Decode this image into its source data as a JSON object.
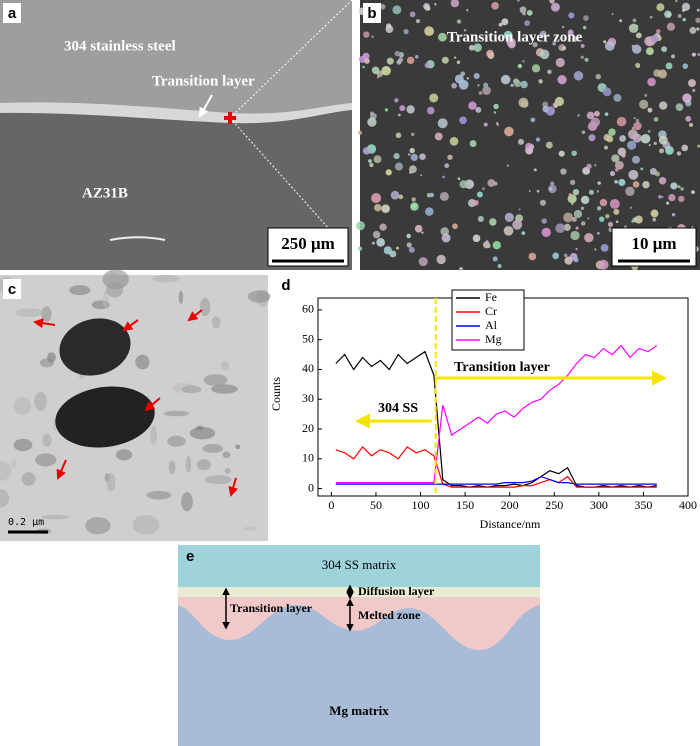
{
  "panel_a": {
    "label": "a",
    "steel": "304 stainless steel",
    "layer": "Transition layer",
    "alloy": "AZ31B",
    "scale": "250 μm"
  },
  "panel_b": {
    "label": "b",
    "title": "Transition layer zone",
    "scale": "10 μm"
  },
  "panel_c": {
    "label": "c",
    "scale": "0.2 μm"
  },
  "panel_e": {
    "label": "e",
    "top": "304 SS matrix",
    "diffusion": "Diffusion layer",
    "transition": "Transition layer",
    "melted": "Melted zone",
    "bottom": "Mg matrix"
  },
  "chart_data": {
    "type": "line",
    "label": "d",
    "x_label": "Distance/nm",
    "y_label": "Counts",
    "x": [
      5,
      15,
      25,
      35,
      45,
      55,
      65,
      75,
      85,
      95,
      105,
      115,
      125,
      135,
      145,
      155,
      165,
      175,
      185,
      195,
      205,
      215,
      225,
      235,
      245,
      255,
      265,
      275,
      285,
      295,
      305,
      315,
      325,
      335,
      345,
      355,
      365
    ],
    "series": [
      {
        "name": "Fe",
        "color": "#000000",
        "values": [
          42,
          45,
          40,
          44,
          41,
          43,
          40,
          45,
          42,
          44,
          46,
          38,
          3,
          1,
          1,
          0.5,
          1,
          0.5,
          1,
          1,
          1.5,
          1,
          2,
          4,
          6,
          5,
          7,
          1,
          0.5,
          0.5,
          1,
          0.5,
          1,
          0.5,
          1,
          0.5,
          1
        ]
      },
      {
        "name": "Cr",
        "color": "#ff0000",
        "values": [
          13,
          12,
          10,
          14,
          11,
          13,
          12,
          10,
          14,
          12,
          13,
          11,
          1.5,
          0.5,
          0.5,
          0.5,
          0.5,
          0.5,
          0.5,
          0.5,
          0.5,
          1,
          1,
          2,
          3,
          2,
          4,
          0.5,
          0.5,
          0.5,
          0.5,
          0.5,
          0.5,
          0.5,
          0.5,
          0.5,
          0.5
        ]
      },
      {
        "name": "Al",
        "color": "#0000ff",
        "values": [
          1.5,
          1.5,
          1.5,
          1.5,
          1.5,
          1.5,
          1.5,
          1.5,
          1.5,
          1.5,
          1.5,
          1.5,
          1.5,
          1.5,
          1.5,
          1.5,
          1.5,
          1.5,
          1.5,
          2,
          2,
          2,
          2.5,
          4,
          3,
          2,
          2,
          1.5,
          1.5,
          1.5,
          1.5,
          1.5,
          1.5,
          1.5,
          1.5,
          1.5,
          1.5
        ]
      },
      {
        "name": "Mg",
        "color": "#ff00ff",
        "values": [
          2,
          2,
          2,
          2,
          2,
          2,
          2,
          2,
          2,
          2,
          2,
          2,
          28,
          18,
          20,
          22,
          24,
          22,
          25,
          26,
          24,
          27,
          29,
          30,
          33,
          35,
          38,
          42,
          45,
          44,
          47,
          45,
          48,
          44,
          47,
          46,
          48
        ]
      }
    ],
    "xlim": [
      -15,
      400
    ],
    "ylim": [
      -2.5,
      64
    ],
    "xticks": [
      0,
      50,
      100,
      150,
      200,
      250,
      300,
      350,
      400
    ],
    "yticks": [
      0,
      10,
      20,
      30,
      40,
      50,
      60
    ],
    "vline": 117,
    "annotations": [
      "Transition layer",
      "304 SS"
    ]
  }
}
